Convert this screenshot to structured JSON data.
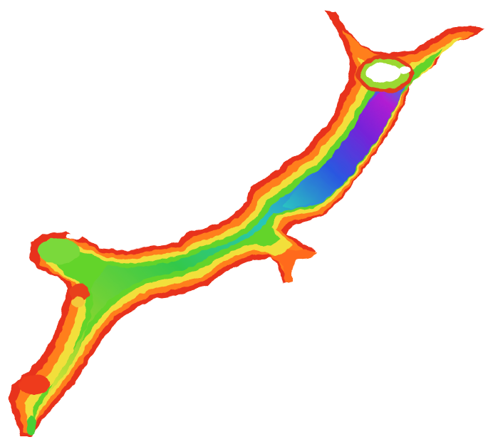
{
  "map": {
    "kind": "bathymetric relief map",
    "colors": {
      "background": "#ffffff",
      "shallow": "#e8281e",
      "shallow_orange": "#ff7a1a",
      "mid_yellow": "#f4e23a",
      "mid_green": "#5fd32a",
      "green_deep": "#21c24a",
      "cyan": "#27c9c7",
      "blue": "#2a5fe0",
      "deep_blue": "#2a1fd0",
      "deepest": "#9a1fd8"
    },
    "colormap": [
      "red",
      "orange",
      "yellow",
      "green",
      "cyan",
      "blue",
      "violet"
    ],
    "labels": []
  }
}
